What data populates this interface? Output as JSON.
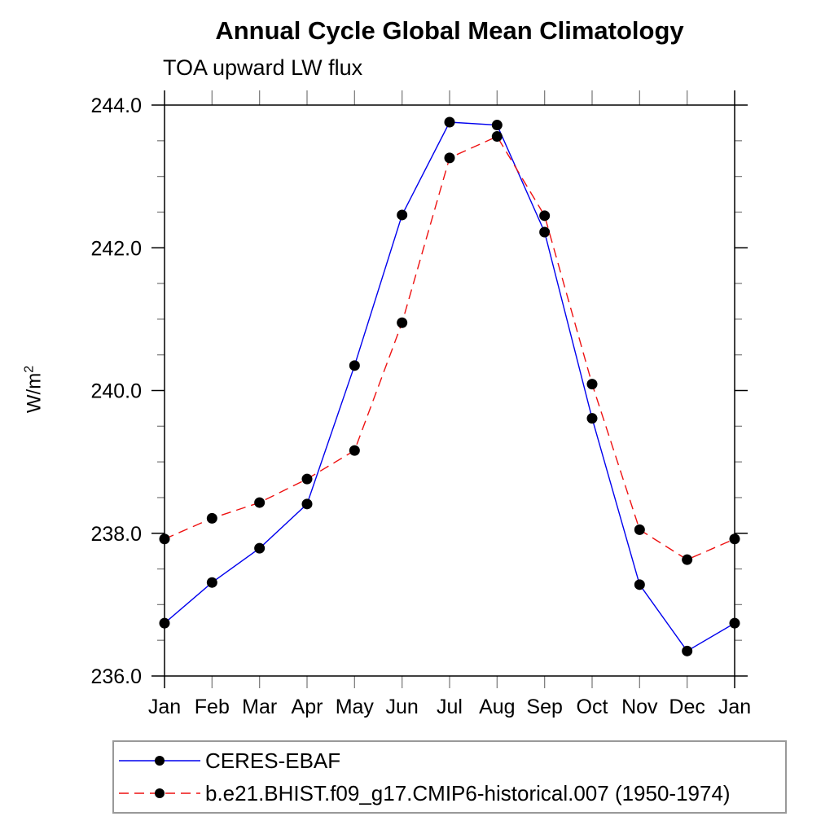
{
  "chart_data": {
    "type": "line",
    "title": "Annual Cycle Global Mean Climatology",
    "subtitle": "TOA upward LW flux",
    "ylabel_base": "W/m",
    "ylabel_sup": "2",
    "categories": [
      "Jan",
      "Feb",
      "Mar",
      "Apr",
      "May",
      "Jun",
      "Jul",
      "Aug",
      "Sep",
      "Oct",
      "Nov",
      "Dec",
      "Jan"
    ],
    "series": [
      {
        "name": "CERES-EBAF",
        "color": "#0000ee",
        "style": "solid",
        "marker": "circle",
        "marker_color": "#000000",
        "values": [
          236.74,
          237.31,
          237.79,
          238.41,
          240.35,
          242.46,
          243.76,
          243.72,
          242.22,
          239.61,
          237.28,
          236.35,
          236.74
        ]
      },
      {
        "name": "b.e21.BHIST.f09_g17.CMIP6-historical.007 (1950-1974)",
        "color": "#ee1111",
        "style": "dashed",
        "marker": "circle",
        "marker_color": "#000000",
        "values": [
          237.92,
          238.21,
          238.43,
          238.76,
          239.16,
          240.95,
          243.26,
          243.56,
          242.45,
          240.09,
          238.05,
          237.63,
          237.92
        ]
      }
    ],
    "ylim": [
      236.0,
      244.0
    ],
    "ytick_major": 2.0,
    "ytick_minor": 0.5,
    "ytick_labels": [
      "236.0",
      "238.0",
      "240.0",
      "242.0",
      "244.0"
    ],
    "grid": false,
    "legend_position": "bottom-left"
  }
}
